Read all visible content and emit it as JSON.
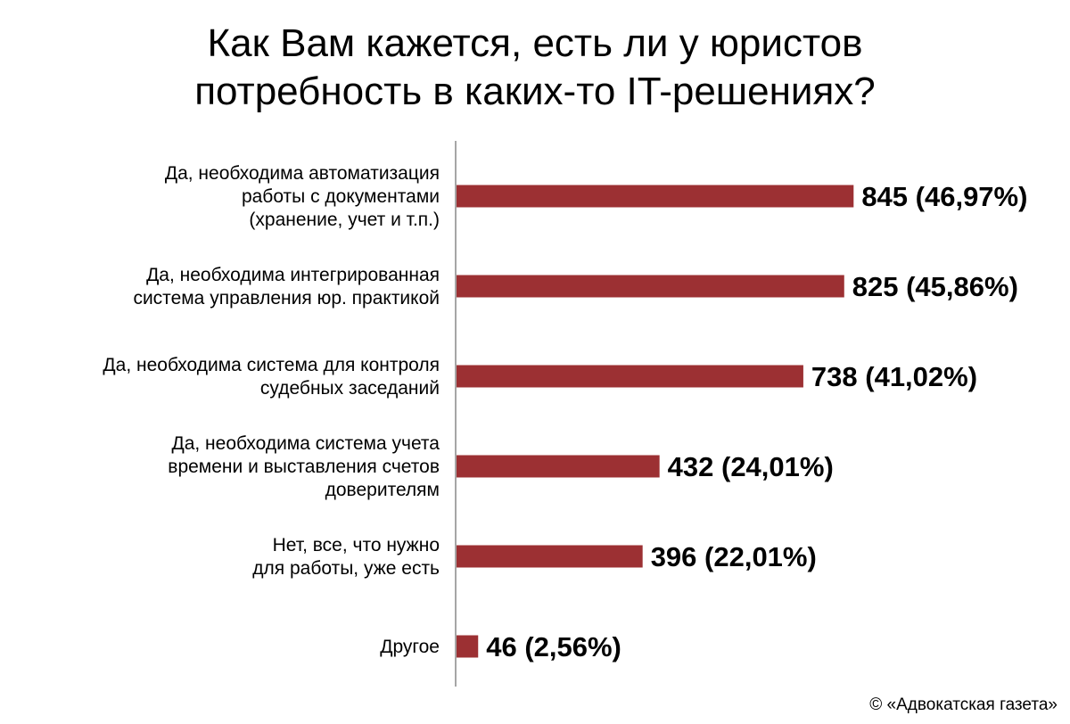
{
  "chart_data": {
    "type": "bar",
    "orientation": "horizontal",
    "title": [
      "Как Вам кажется, есть ли у юристов",
      "потребность в каких-то IT-решениях?"
    ],
    "categories": [
      [
        "Да, необходима автоматизация",
        "работы с документами",
        "(хранение, учет и т.п.)"
      ],
      [
        "Да, необходима интегрированная",
        "система управления юр. практикой"
      ],
      [
        "Да, необходима система для контроля",
        "судебных заседаний"
      ],
      [
        "Да, необходима система учета",
        "времени и выставления счетов",
        "доверителям"
      ],
      [
        "Нет, все, что нужно",
        "для работы, уже есть"
      ],
      [
        "Другое"
      ]
    ],
    "values": [
      845,
      825,
      738,
      432,
      396,
      46
    ],
    "data_labels": [
      "845 (46,97%)",
      "825 (45,86%)",
      "738 (41,02%)",
      "432 (24,01%)",
      "396 (22,01%)",
      "46 (2,56%)"
    ],
    "grid": false,
    "legend": "none",
    "bar_color": "#9c3033"
  },
  "footer": "© «Адвокатская газета»"
}
